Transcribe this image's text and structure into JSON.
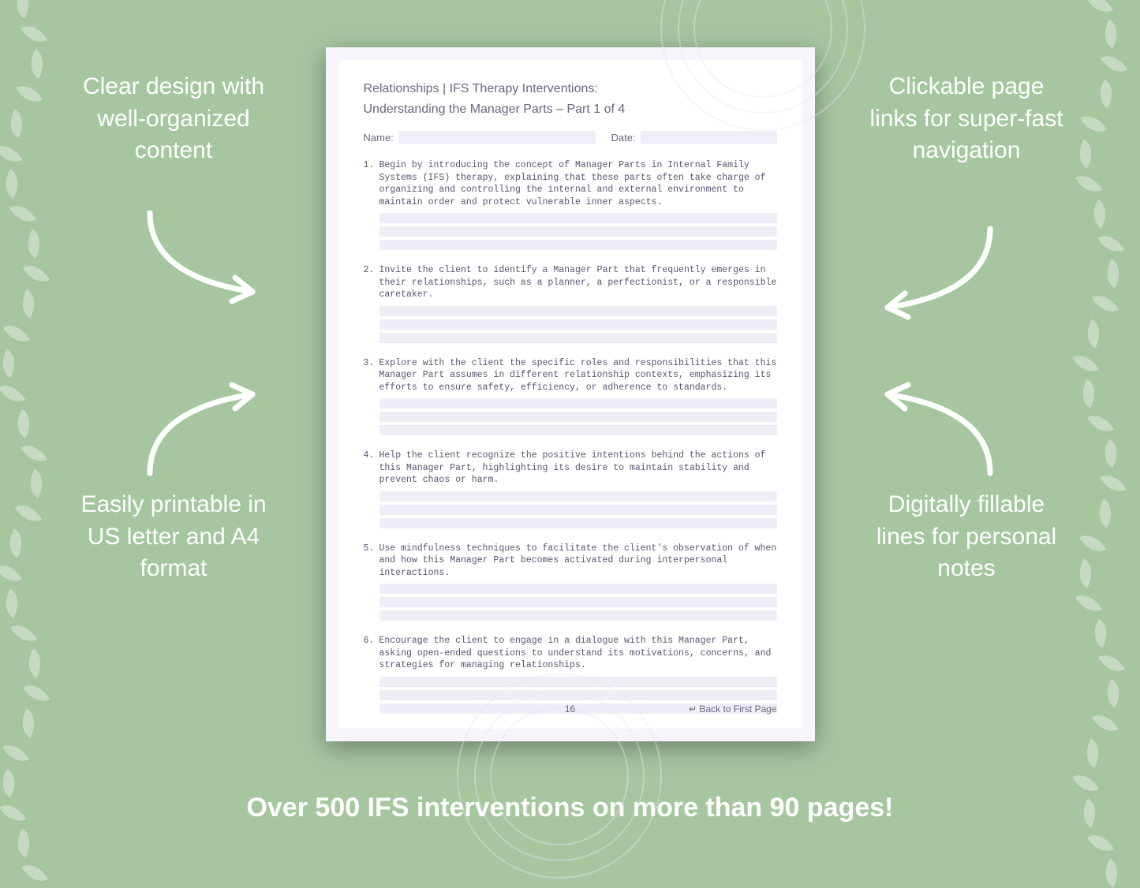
{
  "background_color": "#a6c6a0",
  "callouts": {
    "top_left": "Clear design with well-organized content",
    "top_right": "Clickable page links for super-fast navigation",
    "bottom_left": "Easily printable in US letter and A4 format",
    "bottom_right": "Digitally fillable lines for personal notes"
  },
  "bottom_banner": "Over 500 IFS interventions on more than 90 pages!",
  "page": {
    "title_line1": "Relationships | IFS Therapy Interventions:",
    "title_line2": "Understanding the Manager Parts – Part 1 of 4",
    "name_label": "Name:",
    "date_label": "Date:",
    "items": [
      {
        "num": "1.",
        "text": "Begin by introducing the concept of Manager Parts in Internal Family Systems (IFS) therapy, explaining that these parts often take charge of organizing and controlling the internal and external environment to maintain order and protect vulnerable inner aspects."
      },
      {
        "num": "2.",
        "text": "Invite the client to identify a Manager Part that frequently emerges in their relationships, such as a planner, a perfectionist, or a responsible caretaker."
      },
      {
        "num": "3.",
        "text": "Explore with the client the specific roles and responsibilities that this Manager Part assumes in different relationship contexts, emphasizing its efforts to ensure safety, efficiency, or adherence to standards."
      },
      {
        "num": "4.",
        "text": "Help the client recognize the positive intentions behind the actions of this Manager Part, highlighting its desire to maintain stability and prevent chaos or harm."
      },
      {
        "num": "5.",
        "text": "Use mindfulness techniques to facilitate the client's observation of when and how this Manager Part becomes activated during interpersonal interactions."
      },
      {
        "num": "6.",
        "text": "Encourage the client to engage in a dialogue with this Manager Part, asking open-ended questions to understand its motivations, concerns, and strategies for managing relationships."
      }
    ],
    "page_number": "16",
    "back_link": "↵ Back to First Page",
    "fill_color": "#f1edf7",
    "page_bg": "#f7f4fb",
    "text_color": "#6b6580",
    "mono_text_color": "#5a5470",
    "lines_per_item": 3
  },
  "decor": {
    "vine_color": "#ffffff",
    "vine_opacity": 0.35,
    "arrow_color": "#ffffff",
    "arrow_stroke": 7
  },
  "typography": {
    "callout_fontsize": 30,
    "banner_fontsize": 34,
    "page_title_fontsize": 16,
    "item_fontsize": 11.5
  }
}
